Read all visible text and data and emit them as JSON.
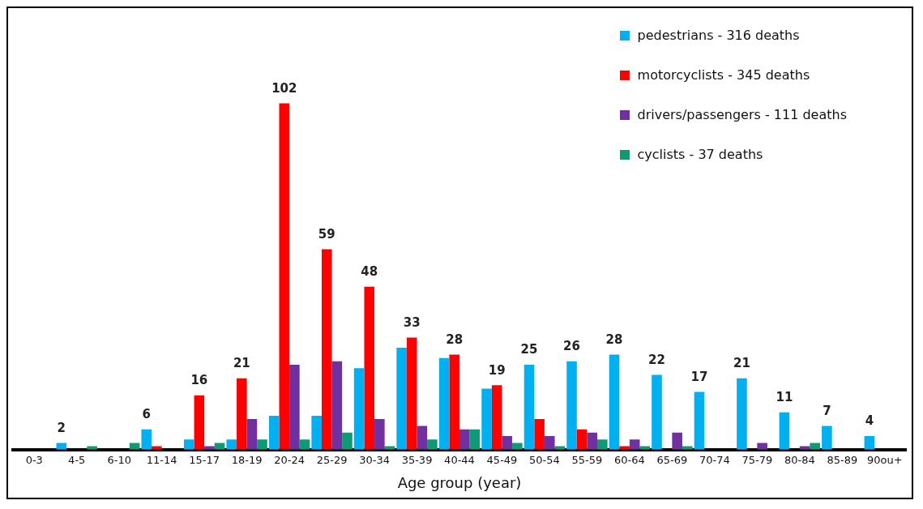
{
  "chart_data": {
    "type": "bar",
    "xlabel": "Age group (year)",
    "legend": "top right",
    "grid": false,
    "categories": [
      "0-3",
      "4-5",
      "6-10",
      "11-14",
      "15-17",
      "18-19",
      "20-24",
      "25-29",
      "30-34",
      "35-39",
      "40-44",
      "45-49",
      "50-54",
      "55-59",
      "60-64",
      "65-69",
      "70-74",
      "75-79",
      "80-84",
      "85-89",
      "90ou+"
    ],
    "series": [
      {
        "name": "pedestrians - 316 deaths",
        "color": "#00b0f0",
        "values": [
          0,
          2,
          0,
          6,
          3,
          3,
          10,
          10,
          24,
          30,
          27,
          18,
          25,
          26,
          28,
          22,
          17,
          21,
          11,
          7,
          4
        ],
        "value_labels": [
          null,
          "2",
          null,
          "6",
          null,
          null,
          null,
          null,
          null,
          null,
          null,
          null,
          "25",
          "26",
          "28",
          "22",
          "17",
          "21",
          "11",
          "7",
          "4"
        ]
      },
      {
        "name": "motorcyclists - 345 deaths",
        "color": "#ff0000",
        "values": [
          0,
          0,
          0,
          1,
          16,
          21,
          102,
          59,
          48,
          33,
          28,
          19,
          9,
          6,
          1,
          0,
          0,
          0,
          0,
          0,
          0
        ],
        "value_labels": [
          null,
          null,
          null,
          null,
          "16",
          "21",
          "102",
          "59",
          "48",
          "33",
          "28",
          "19",
          null,
          null,
          null,
          null,
          null,
          null,
          null,
          null,
          null
        ]
      },
      {
        "name": "drivers/passengers - 111 deaths",
        "color": "#7030a0",
        "values": [
          0,
          0,
          0,
          0,
          1,
          9,
          25,
          26,
          9,
          7,
          6,
          4,
          4,
          5,
          3,
          5,
          0,
          2,
          1,
          0,
          0
        ]
      },
      {
        "name": "cyclists - 37 deaths",
        "color": "#0d9a75",
        "values": [
          0,
          1,
          2,
          0,
          2,
          3,
          3,
          5,
          1,
          3,
          6,
          2,
          1,
          3,
          1,
          1,
          0,
          0,
          2,
          0,
          0
        ]
      }
    ]
  }
}
